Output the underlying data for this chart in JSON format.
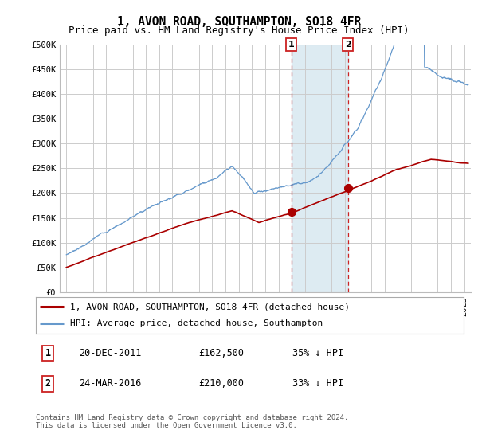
{
  "title": "1, AVON ROAD, SOUTHAMPTON, SO18 4FR",
  "subtitle": "Price paid vs. HM Land Registry's House Price Index (HPI)",
  "ylabel_ticks": [
    "£0",
    "£50K",
    "£100K",
    "£150K",
    "£200K",
    "£250K",
    "£300K",
    "£350K",
    "£400K",
    "£450K",
    "£500K"
  ],
  "ytick_values": [
    0,
    50000,
    100000,
    150000,
    200000,
    250000,
    300000,
    350000,
    400000,
    450000,
    500000
  ],
  "ylim": [
    0,
    500000
  ],
  "xlim_start": 1994.5,
  "xlim_end": 2025.5,
  "transaction1_date": "20-DEC-2011",
  "transaction1_price": "£162,500",
  "transaction1_hpi": "35% ↓ HPI",
  "transaction1_x": 2011.97,
  "transaction1_y": 162500,
  "transaction2_date": "24-MAR-2016",
  "transaction2_price": "£210,000",
  "transaction2_hpi": "33% ↓ HPI",
  "transaction2_x": 2016.23,
  "transaction2_y": 210000,
  "legend_line1": "1, AVON ROAD, SOUTHAMPTON, SO18 4FR (detached house)",
  "legend_line2": "HPI: Average price, detached house, Southampton",
  "footnote": "Contains HM Land Registry data © Crown copyright and database right 2024.\nThis data is licensed under the Open Government Licence v3.0.",
  "line_red_color": "#aa0000",
  "line_blue_color": "#6699cc",
  "shade_color": "#d8e8f0",
  "vline_color": "#cc2222",
  "background_color": "#ffffff",
  "grid_color": "#cccccc",
  "title_fontsize": 10.5,
  "subtitle_fontsize": 9,
  "tick_fontsize": 7.5,
  "legend_fontsize": 8
}
